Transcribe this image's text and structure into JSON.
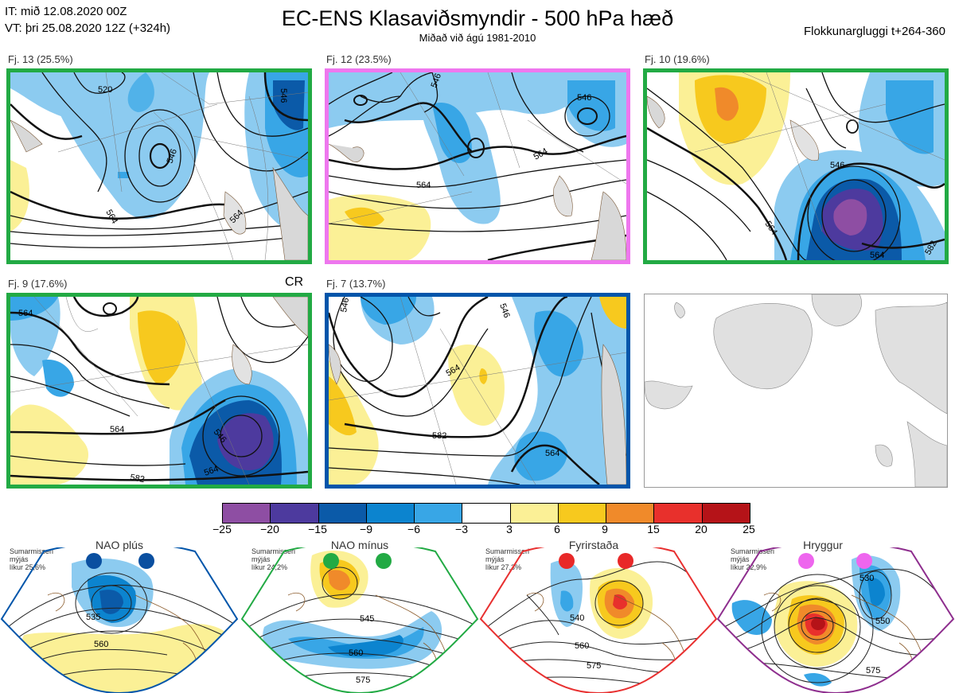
{
  "header": {
    "it": "IT: mið 12.08.2020 00Z",
    "vt": "VT: þri 25.08.2020 12Z  (+324h)",
    "title": "EC-ENS Klasaviðsmyndir - 500 hPa hæð",
    "subtitle": "Miðað við ágú 1981-2010",
    "right": "Flokkunargluggi t+264-360"
  },
  "panels": [
    {
      "label": "Fj. 13 (25.5%)",
      "border": "#22aa44",
      "contours": [
        "520",
        "546",
        "564",
        "564",
        "546"
      ]
    },
    {
      "label": "Fj. 12 (23.5%)",
      "border": "#ee77ee",
      "contours": [
        "546",
        "546",
        "564",
        "564"
      ]
    },
    {
      "label": "Fj. 10 (19.6%)",
      "border": "#22aa44",
      "contours": [
        "546",
        "564",
        "564",
        "582"
      ]
    },
    {
      "label": "Fj. 9 (17.6%)",
      "border": "#22aa44",
      "contours": [
        "564",
        "564",
        "546",
        "564",
        "582"
      ],
      "tag": "CR"
    },
    {
      "label": "Fj. 7 (13.7%)",
      "border": "#0055aa",
      "contours": [
        "546",
        "546",
        "564",
        "582",
        "564"
      ]
    },
    {
      "label": "",
      "border": "#999999",
      "contours": []
    }
  ],
  "colorbar": {
    "ticks": [
      "−25",
      "−20",
      "−15",
      "−9",
      "−6",
      "−3",
      "3",
      "6",
      "9",
      "15",
      "20",
      "25"
    ],
    "colors": [
      "#8e4ea3",
      "#4d3a9e",
      "#0b5aa8",
      "#0c84cf",
      "#38a6e6",
      "#8ccbf0",
      "#ffffff",
      "#fbf096",
      "#f7c91e",
      "#f08a2a",
      "#e8302c",
      "#b51318"
    ]
  },
  "regimes": [
    {
      "name": "NAO plús",
      "note": [
        "Sumarmisseri",
        "mýjás",
        "líkur 25,6%"
      ],
      "outline": "#0055aa",
      "dot": "#0a4fa0",
      "contours": [
        "535",
        "560"
      ]
    },
    {
      "name": "NAO mínus",
      "note": [
        "Sumarmisseri",
        "mýjás",
        "líkur 24,2%"
      ],
      "outline": "#22aa44",
      "dot": "#22aa44",
      "contours": [
        "545",
        "560",
        "575"
      ]
    },
    {
      "name": "Fyrirstaða",
      "note": [
        "Sumarmisseri",
        "mýjás",
        "líkur 27,3%"
      ],
      "outline": "#e83030",
      "dot": "#e82828",
      "contours": [
        "540",
        "560",
        "575"
      ]
    },
    {
      "name": "Hryggur",
      "note": [
        "Sumarmisseri",
        "mýjás",
        "líkur 22,9%"
      ],
      "outline": "#8e2e8e",
      "dot": "#ee66ee",
      "contours": [
        "530",
        "550",
        "575"
      ]
    }
  ]
}
